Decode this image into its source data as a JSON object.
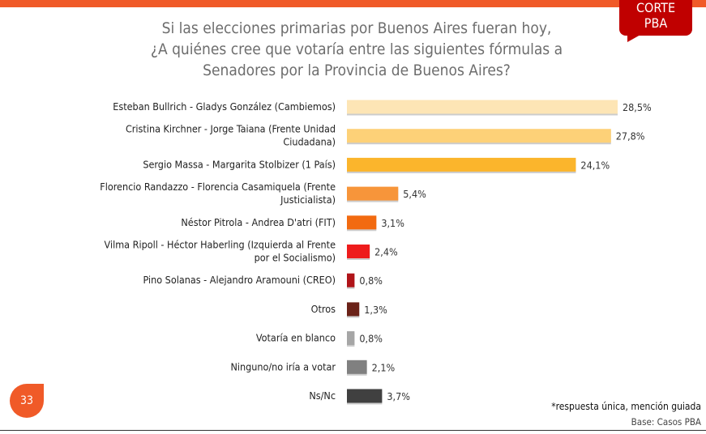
{
  "header": {
    "badge_line1": "CORTE",
    "badge_line2": "PBA"
  },
  "footer": {
    "page_number": "33",
    "note": "*respuesta única, mención guiada",
    "base": "Base: Casos PBA"
  },
  "chart_data": {
    "type": "bar",
    "orientation": "horizontal",
    "title": "Si las elecciones primarias por Buenos Aires fueran hoy, ¿A quiénes cree que votaría entre las siguientes fórmulas a Senadores por la Provincia de Buenos Aires?",
    "title_lines": [
      "Si las elecciones primarias por Buenos Aires fueran hoy,",
      "¿A quiénes cree que votaría entre las siguientes fórmulas a",
      "Senadores por la Provincia de Buenos Aires?"
    ],
    "categories": [
      [
        "Esteban Bullrich - Gladys González (Cambiemos)"
      ],
      [
        "Cristina Kirchner - Jorge Taiana (Frente Unidad",
        "Ciudadana)"
      ],
      [
        "Sergio Massa - Margarita Stolbizer (1 País)"
      ],
      [
        "Florencio Randazzo - Florencia Casamiquela (Frente",
        "Justicialista)"
      ],
      [
        "Néstor Pitrola - Andrea D'atri (FIT)"
      ],
      [
        "Vilma Ripoll - Héctor Haberling (Izquierda al Frente",
        "por el Socialismo)"
      ],
      [
        "Pino Solanas - Alejandro Aramouni (CREO)"
      ],
      [
        "Otros"
      ],
      [
        "Votaría en blanco"
      ],
      [
        "Ninguno/no iría a votar"
      ],
      [
        "Ns/Nc"
      ]
    ],
    "values": [
      28.5,
      27.8,
      24.1,
      5.4,
      3.1,
      2.4,
      0.8,
      1.3,
      0.8,
      2.1,
      3.7
    ],
    "value_labels": [
      "28,5%",
      "27,8%",
      "24,1%",
      "5,4%",
      "3,1%",
      "2,4%",
      "0,8%",
      "1,3%",
      "0,8%",
      "2,1%",
      "3,7%"
    ],
    "colors": [
      "#fde5b5",
      "#fdd178",
      "#fbb52c",
      "#f7953a",
      "#f26a10",
      "#ee1c1c",
      "#b01419",
      "#6b2218",
      "#a6a6a6",
      "#808080",
      "#404040"
    ],
    "xlim": [
      0,
      30
    ],
    "grid": false,
    "legend": "none"
  }
}
